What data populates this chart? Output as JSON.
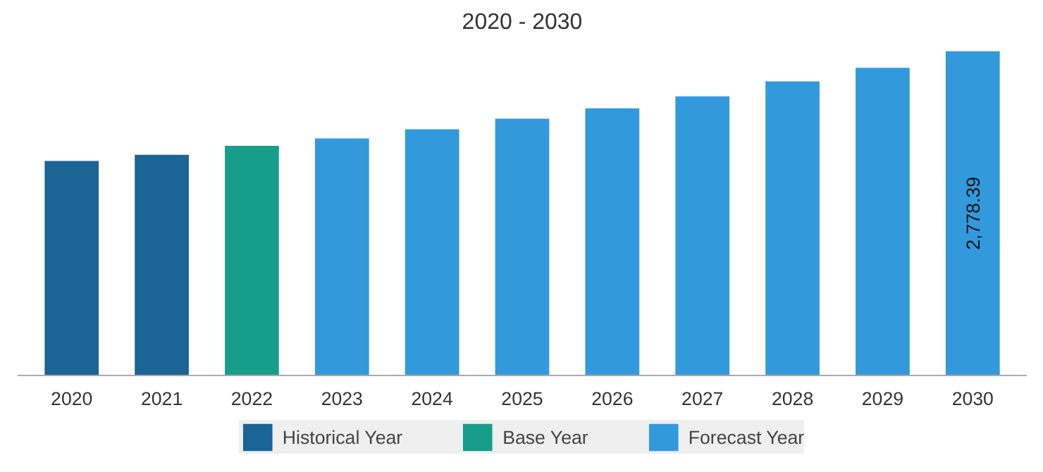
{
  "chart_data": {
    "type": "bar",
    "title": "2020 - 2030",
    "categories": [
      "2020",
      "2021",
      "2022",
      "2023",
      "2024",
      "2025",
      "2026",
      "2027",
      "2028",
      "2029",
      "2030"
    ],
    "series": [
      {
        "name": "Historical Year",
        "color": "#1a6496",
        "values": [
          1839,
          1891,
          null,
          null,
          null,
          null,
          null,
          null,
          null,
          null,
          null
        ]
      },
      {
        "name": "Base Year",
        "color": "#169e8a",
        "values": [
          null,
          null,
          1968,
          null,
          null,
          null,
          null,
          null,
          null,
          null,
          null
        ]
      },
      {
        "name": "Forecast Year",
        "color": "#3399dd",
        "values": [
          null,
          null,
          null,
          2032,
          2110,
          2200,
          2290,
          2393,
          2521,
          2637,
          2778.39
        ],
        "value_labels": [
          null,
          null,
          null,
          null,
          null,
          null,
          null,
          null,
          null,
          null,
          "2,778.39"
        ]
      }
    ],
    "legend": "bottom"
  }
}
